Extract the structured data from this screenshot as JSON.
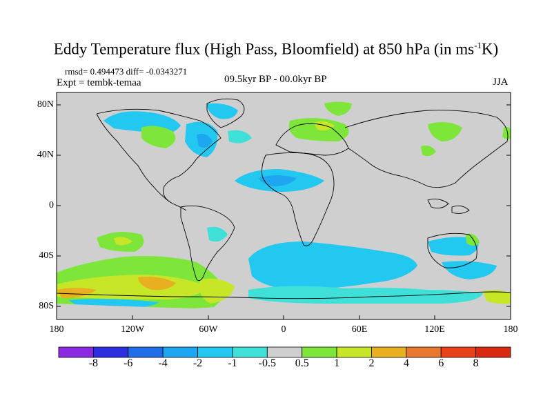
{
  "title_main": "Eddy Temperature flux (High Pass, Bloomfield) at 850 hPa (in ms",
  "title_sup": "-1",
  "title_end": "K)",
  "stats": "rmsd= 0.494473 diff= -0.0343271",
  "expt": "Expt = tembk-temaa",
  "period": "09.5kyr BP - 00.0kyr BP",
  "season": "JJA",
  "lat_labels": [
    "80N",
    "40N",
    "0",
    "40S",
    "80S"
  ],
  "lon_labels": [
    "180",
    "120W",
    "60W",
    "0",
    "60E",
    "120E",
    "180"
  ],
  "colorbar": {
    "labels": [
      "-8",
      "-6",
      "-4",
      "-2",
      "-1",
      "-0.5",
      "0.5",
      "1",
      "2",
      "4",
      "6",
      "8"
    ],
    "colors": [
      "#8a2be2",
      "#2d2de0",
      "#1f6ee8",
      "#1fa6f0",
      "#22c8f0",
      "#3fe0d8",
      "#cfcfcf",
      "#7ee63a",
      "#c8e628",
      "#e8b020",
      "#e87830",
      "#e84018",
      "#d82a10"
    ]
  }
}
